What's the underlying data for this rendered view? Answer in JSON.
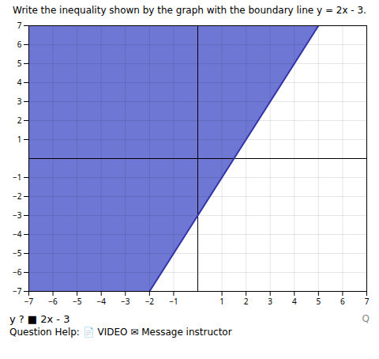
{
  "chart_data": {
    "type": "area",
    "title": "Write the inequality shown by the graph with the boundary line y = 2x - 3.",
    "shaded_region": {
      "x": [
        -7,
        5,
        -2,
        -7
      ],
      "y": [
        7,
        7,
        -7,
        -7
      ],
      "color": "#6e78d4"
    },
    "boundary_line": {
      "x": [
        -2,
        5
      ],
      "y": [
        -7,
        7
      ],
      "color": "#3333aa"
    },
    "xlim": [
      -7,
      7
    ],
    "ylim": [
      -7,
      7
    ],
    "xticks": [
      -7,
      -6,
      -5,
      -4,
      -3,
      -2,
      -1,
      1,
      2,
      3,
      4,
      5,
      6,
      7
    ],
    "yticks": [
      -7,
      -6,
      -5,
      -4,
      -3,
      -2,
      -1,
      1,
      2,
      3,
      4,
      5,
      6,
      7
    ],
    "grid": true,
    "annotations": [
      "y  ?  ■  2x - 3",
      "Question Help:  📄 VIDEO  ✉ Message instructor",
      "Q"
    ]
  }
}
